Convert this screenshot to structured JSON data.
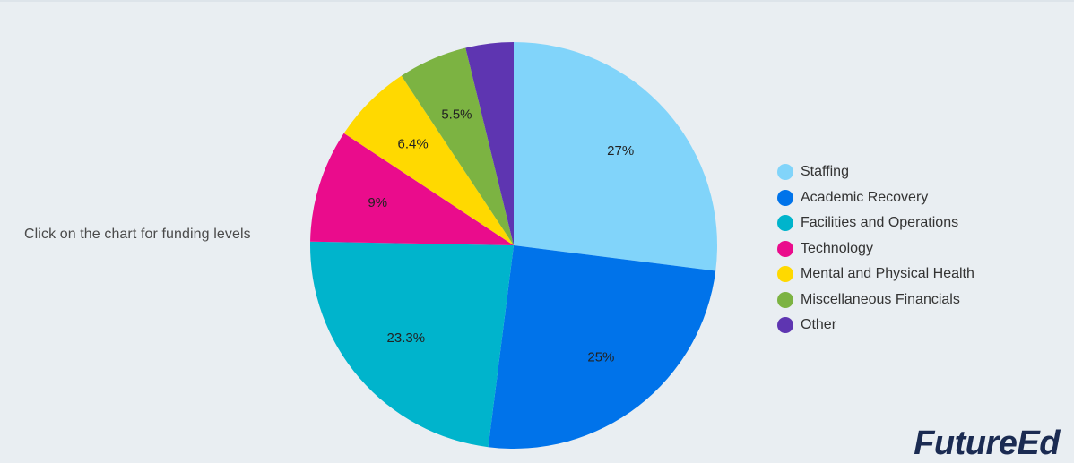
{
  "instruction_text": "Click on the chart for funding levels",
  "logo_text": "FutureEd",
  "chart_data": {
    "type": "pie",
    "series": [
      {
        "label": "Staffing",
        "value": 27,
        "display": "27%",
        "color": "#81d4fa"
      },
      {
        "label": "Academic Recovery",
        "value": 25,
        "display": "25%",
        "color": "#0073ea"
      },
      {
        "label": "Facilities and Operations",
        "value": 23.3,
        "display": "23.3%",
        "color": "#00b4cc"
      },
      {
        "label": "Technology",
        "value": 9,
        "display": "9%",
        "color": "#ea0c8c"
      },
      {
        "label": "Mental and Physical Health",
        "value": 6.4,
        "display": "6.4%",
        "color": "#ffd900"
      },
      {
        "label": "Miscellaneous Financials",
        "value": 5.5,
        "display": "5.5%",
        "color": "#7cb342"
      },
      {
        "label": "Other",
        "value": 3.8,
        "display": "",
        "color": "#5e35b1"
      }
    ],
    "start_angle": "top (12 o'clock)",
    "direction": "clockwise",
    "legend_position": "right"
  }
}
